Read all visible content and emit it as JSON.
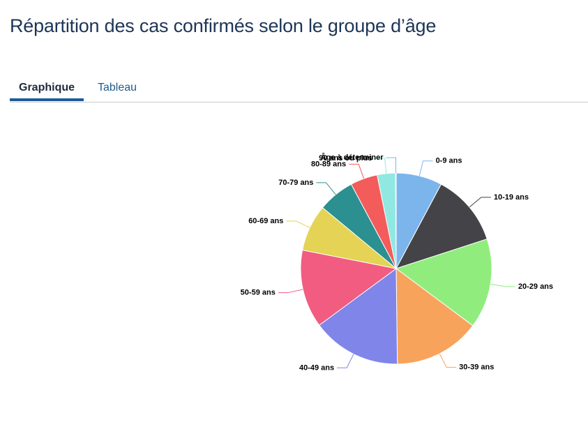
{
  "page": {
    "title": "Répartition des cas confirmés selon le groupe d’âge",
    "tabs": [
      "Graphique",
      "Tableau"
    ]
  },
  "chart_data": {
    "type": "pie",
    "categories": [
      "0-9 ans",
      "10-19 ans",
      "20-29 ans",
      "30-39 ans",
      "40-49 ans",
      "50-59 ans",
      "60-69 ans",
      "70-79 ans",
      "80-89 ans",
      "90 ans ou plus",
      "Âge à déterminer"
    ],
    "values": [
      7.8,
      12.2,
      15.2,
      14.6,
      15.1,
      13.2,
      7.9,
      6.2,
      4.6,
      3.1,
      0.1
    ],
    "colors": [
      "#7cb5ec",
      "#434348",
      "#90ed7d",
      "#f7a35c",
      "#8085e9",
      "#f15c80",
      "#e4d354",
      "#2b908f",
      "#f45b5b",
      "#91e8e1",
      "#7cb5ec"
    ]
  }
}
